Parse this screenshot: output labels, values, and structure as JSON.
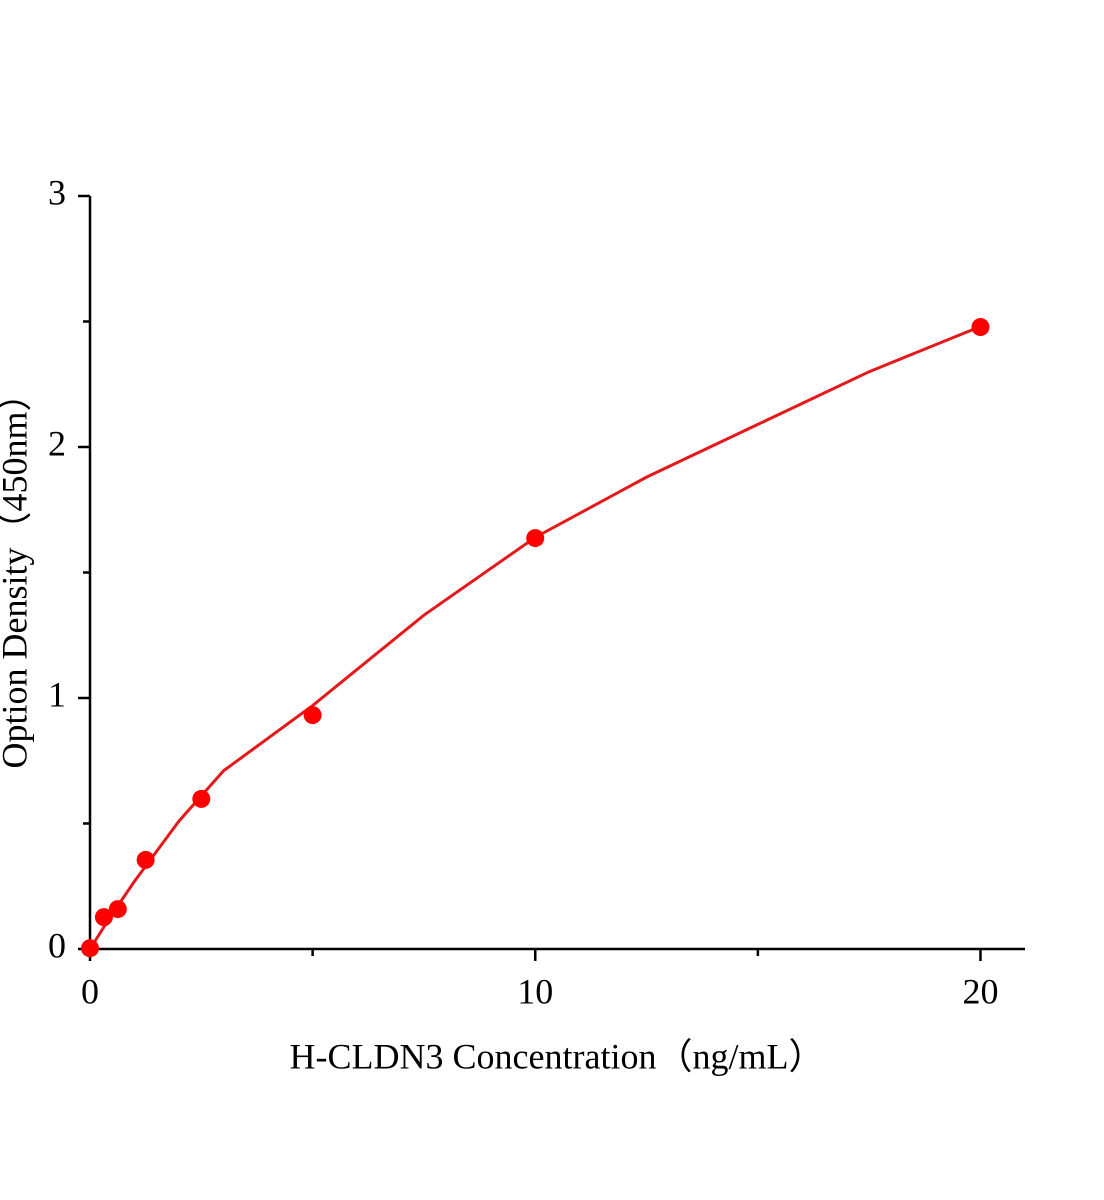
{
  "chart_data": {
    "type": "scatter",
    "x_label": "H-CLDN3 Concentration（ng/mL）",
    "y_label": "Option Density（450nm）",
    "xlim": [
      0,
      21
    ],
    "ylim": [
      0,
      3
    ],
    "xticks": [
      0,
      10,
      20
    ],
    "yticks": [
      0,
      1,
      2,
      3
    ],
    "xminorticks": [
      5,
      15
    ],
    "yminorticks": [
      0.5,
      1.5,
      2.5
    ],
    "series": [
      {
        "color": "#ff0000",
        "x": [
          0,
          0.3125,
          0.625,
          1.25,
          2.5,
          5,
          10,
          20
        ],
        "values": [
          0.003,
          0.127,
          0.159,
          0.355,
          0.598,
          0.932,
          1.637,
          2.478
        ]
      }
    ],
    "fit": {
      "color": "#e31a1c",
      "x": [
        0,
        0.5,
        1,
        2,
        3,
        5,
        7.5,
        10,
        12.5,
        15,
        17.5,
        20
      ],
      "values": [
        0,
        0.14,
        0.27,
        0.51,
        0.71,
        0.97,
        1.33,
        1.64,
        1.88,
        2.09,
        2.3,
        2.48
      ]
    }
  }
}
